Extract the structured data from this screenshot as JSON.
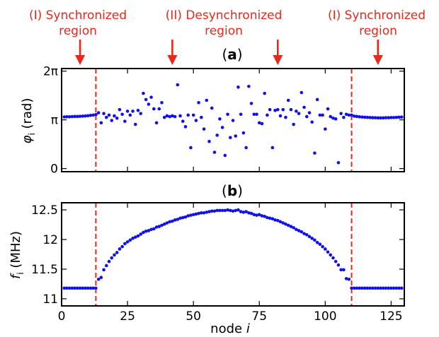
{
  "annotations": [
    {
      "line1": "(I) Synchronized",
      "line2": "region",
      "node": 7
    },
    {
      "line1": "(II) Desynchronized",
      "line2": "region",
      "node": 42
    },
    {
      "line1": "(I) Synchronized",
      "line2": "region",
      "node": 120
    }
  ],
  "extra_arrow_node": 82,
  "colors": {
    "points": "#1010ee",
    "boundary": "#e8281c",
    "annotation": "#e8281c",
    "axes": "#000000"
  },
  "chart_data": [
    {
      "type": "scatter",
      "panel": "a",
      "title_prefix": "(",
      "title_bold": "a",
      "title_suffix": ")",
      "ylabel_main": "φ",
      "ylabel_sub": "i",
      "ylabel_rest": " (rad)",
      "yticks": [
        {
          "v": 0,
          "label": "0"
        },
        {
          "v": 3.1416,
          "label": "π"
        },
        {
          "v": 6.2832,
          "label": "2π"
        }
      ],
      "xlim": [
        0,
        130
      ],
      "ylim": [
        -0.2,
        6.45
      ],
      "boundaries": [
        13,
        110
      ],
      "x": [
        1,
        2,
        3,
        4,
        5,
        6,
        7,
        8,
        9,
        10,
        11,
        12,
        13,
        14,
        15,
        16,
        17,
        18,
        19,
        20,
        21,
        22,
        23,
        24,
        25,
        26,
        27,
        28,
        29,
        30,
        31,
        32,
        33,
        34,
        35,
        36,
        37,
        38,
        39,
        40,
        41,
        42,
        43,
        44,
        45,
        46,
        47,
        48,
        49,
        50,
        51,
        52,
        53,
        54,
        55,
        56,
        57,
        58,
        59,
        60,
        61,
        62,
        63,
        64,
        65,
        66,
        67,
        68,
        69,
        70,
        71,
        72,
        73,
        74,
        75,
        76,
        77,
        78,
        79,
        80,
        81,
        82,
        83,
        84,
        85,
        86,
        87,
        88,
        89,
        90,
        91,
        92,
        93,
        94,
        95,
        96,
        97,
        98,
        99,
        100,
        101,
        102,
        103,
        104,
        105,
        106,
        107,
        108,
        109,
        110,
        111,
        112,
        113,
        114,
        115,
        116,
        117,
        118,
        119,
        120,
        121,
        122,
        123,
        124,
        125,
        126,
        127,
        128,
        129
      ],
      "y": [
        3.33,
        3.34,
        3.34,
        3.35,
        3.36,
        3.36,
        3.37,
        3.38,
        3.39,
        3.41,
        3.43,
        3.45,
        3.48,
        3.6,
        2.95,
        3.55,
        3.3,
        3.45,
        3.1,
        3.4,
        3.25,
        3.8,
        3.5,
        3.05,
        3.7,
        3.45,
        3.7,
        2.85,
        3.75,
        3.55,
        4.85,
        4.45,
        4.15,
        4.6,
        3.85,
        2.95,
        3.85,
        4.25,
        3.3,
        3.4,
        3.35,
        3.4,
        3.35,
        5.4,
        3.4,
        3.05,
        2.7,
        3.45,
        1.35,
        3.45,
        3.1,
        4.25,
        3.3,
        2.55,
        4.4,
        1.75,
        3.9,
        1.05,
        2.15,
        3.2,
        2.65,
        0.85,
        3.5,
        2.0,
        3.1,
        2.1,
        5.25,
        3.5,
        2.3,
        1.35,
        5.3,
        4.2,
        3.5,
        3.5,
        2.95,
        2.9,
        4.85,
        3.45,
        3.8,
        1.35,
        3.75,
        3.8,
        3.4,
        3.8,
        3.3,
        4.4,
        3.8,
        2.85,
        3.7,
        3.55,
        4.9,
        3.95,
        3.35,
        3.6,
        3.0,
        1.0,
        4.45,
        3.45,
        3.45,
        2.55,
        3.85,
        3.35,
        3.25,
        3.2,
        0.38,
        3.55,
        3.3,
        3.5,
        3.45,
        3.45,
        3.38,
        3.36,
        3.34,
        3.32,
        3.31,
        3.3,
        3.29,
        3.28,
        3.28,
        3.27,
        3.27,
        3.27,
        3.28,
        3.28,
        3.29,
        3.29,
        3.3,
        3.31,
        3.32
      ]
    },
    {
      "type": "scatter",
      "panel": "b",
      "title_prefix": "(",
      "title_bold": "b",
      "title_suffix": ")",
      "ylabel_main": "f",
      "ylabel_sub": "i",
      "ylabel_rest": " (MHz)",
      "xlabel_main": "node ",
      "xlabel_ital": "i",
      "xticks": [
        {
          "v": 0,
          "label": "0"
        },
        {
          "v": 25,
          "label": "25"
        },
        {
          "v": 50,
          "label": "50"
        },
        {
          "v": 75,
          "label": "75"
        },
        {
          "v": 100,
          "label": "100"
        },
        {
          "v": 125,
          "label": "125"
        }
      ],
      "yticks": [
        {
          "v": 11,
          "label": "11"
        },
        {
          "v": 11.5,
          "label": "11.5"
        },
        {
          "v": 12,
          "label": "12"
        },
        {
          "v": 12.5,
          "label": "12.5"
        }
      ],
      "xlim": [
        0,
        130
      ],
      "ylim": [
        10.88,
        12.62
      ],
      "boundaries": [
        13,
        110
      ],
      "x": [
        1,
        2,
        3,
        4,
        5,
        6,
        7,
        8,
        9,
        10,
        11,
        12,
        13,
        14,
        15,
        16,
        17,
        18,
        19,
        20,
        21,
        22,
        23,
        24,
        25,
        26,
        27,
        28,
        29,
        30,
        31,
        32,
        33,
        34,
        35,
        36,
        37,
        38,
        39,
        40,
        41,
        42,
        43,
        44,
        45,
        46,
        47,
        48,
        49,
        50,
        51,
        52,
        53,
        54,
        55,
        56,
        57,
        58,
        59,
        60,
        61,
        62,
        63,
        64,
        65,
        66,
        67,
        68,
        69,
        70,
        71,
        72,
        73,
        74,
        75,
        76,
        77,
        78,
        79,
        80,
        81,
        82,
        83,
        84,
        85,
        86,
        87,
        88,
        89,
        90,
        91,
        92,
        93,
        94,
        95,
        96,
        97,
        98,
        99,
        100,
        101,
        102,
        103,
        104,
        105,
        106,
        107,
        108,
        109,
        110,
        111,
        112,
        113,
        114,
        115,
        116,
        117,
        118,
        119,
        120,
        121,
        122,
        123,
        124,
        125,
        126,
        127,
        128,
        129
      ],
      "y": [
        11.18,
        11.18,
        11.18,
        11.18,
        11.18,
        11.18,
        11.18,
        11.18,
        11.18,
        11.18,
        11.18,
        11.18,
        11.18,
        11.33,
        11.36,
        11.49,
        11.56,
        11.63,
        11.69,
        11.74,
        11.78,
        11.84,
        11.88,
        11.93,
        11.96,
        11.99,
        12.02,
        12.04,
        12.06,
        12.09,
        12.12,
        12.14,
        12.15,
        12.17,
        12.18,
        12.21,
        12.22,
        12.24,
        12.26,
        12.28,
        12.3,
        12.31,
        12.33,
        12.34,
        12.36,
        12.37,
        12.38,
        12.4,
        12.41,
        12.42,
        12.43,
        12.44,
        12.45,
        12.45,
        12.46,
        12.47,
        12.48,
        12.48,
        12.49,
        12.49,
        12.49,
        12.49,
        12.5,
        12.49,
        12.48,
        12.49,
        12.5,
        12.47,
        12.46,
        12.47,
        12.45,
        12.44,
        12.42,
        12.41,
        12.42,
        12.4,
        12.39,
        12.37,
        12.36,
        12.35,
        12.33,
        12.32,
        12.3,
        12.28,
        12.26,
        12.24,
        12.22,
        12.2,
        12.17,
        12.15,
        12.13,
        12.1,
        12.08,
        12.05,
        12.02,
        11.99,
        11.95,
        11.92,
        11.88,
        11.84,
        11.79,
        11.74,
        11.69,
        11.63,
        11.57,
        11.49,
        11.49,
        11.34,
        11.33,
        11.18,
        11.18,
        11.18,
        11.18,
        11.18,
        11.18,
        11.18,
        11.18,
        11.18,
        11.18,
        11.18,
        11.18,
        11.18,
        11.18,
        11.18,
        11.18,
        11.18,
        11.18,
        11.18,
        11.18
      ]
    }
  ]
}
